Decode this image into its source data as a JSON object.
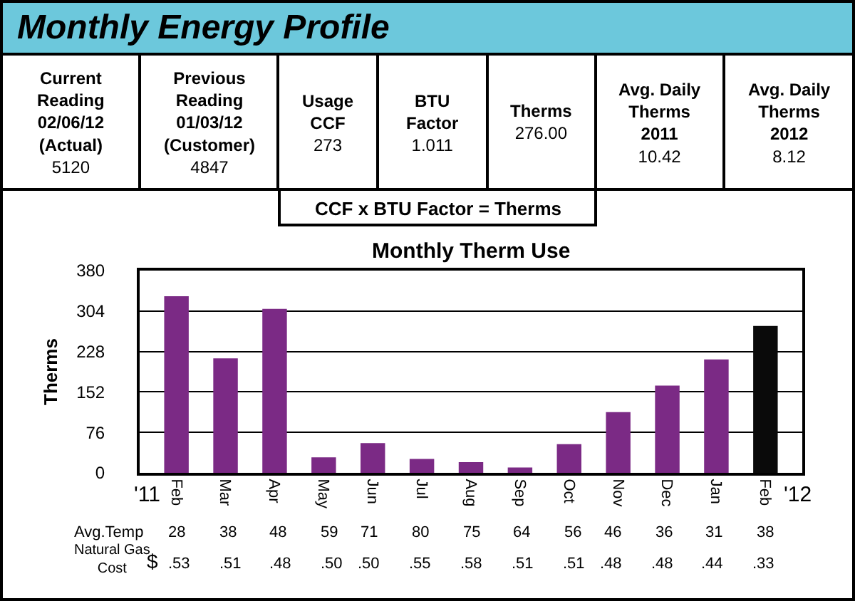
{
  "chart_data": [
    {
      "type": "other",
      "title": "Monthly Energy Profile",
      "annotations": [
        "Current\nReading\n02/06/12\n(Actual)\n5120",
        "Previous\nReading\n01/03/12\n(Customer)\n4847",
        "Usage\nCCF\n273",
        "BTU\nFactor\n1.011",
        "Therms\n276.00",
        "Avg. Daily\nTherms\n2011\n10.42",
        "Avg. Daily\nTherms\n2012\n8.12",
        "CCF x BTU Factor = Therms"
      ]
    },
    {
      "type": "bar",
      "title": "Monthly Therm Use",
      "ylabel": "Therms",
      "categories": [
        "Feb",
        "Mar",
        "Apr",
        "May",
        "Jun",
        "Jul",
        "Aug",
        "Sep",
        "Oct",
        "Nov",
        "Dec",
        "Jan",
        "Feb"
      ],
      "values": [
        332,
        215,
        308,
        29,
        56,
        26,
        20,
        10,
        54,
        114,
        164,
        213,
        276
      ],
      "colors": [
        "#7b2a85",
        "#7b2a85",
        "#7b2a85",
        "#7b2a85",
        "#7b2a85",
        "#7b2a85",
        "#7b2a85",
        "#7b2a85",
        "#7b2a85",
        "#7b2a85",
        "#7b2a85",
        "#7b2a85",
        "#0a0a0a"
      ],
      "ylim": [
        0,
        380
      ],
      "yticks": [
        0,
        76,
        152,
        228,
        304,
        380
      ],
      "grid": "y",
      "annotations": [
        "'11",
        "'12",
        "Avg.Temp",
        "28",
        "38",
        "48",
        "59",
        "71",
        "80",
        "75",
        "64",
        "56",
        "46",
        "36",
        "31",
        "38",
        "Natural Gas\nCost",
        "$",
        ".53",
        ".51",
        ".48",
        ".50",
        ".50",
        ".55",
        ".58",
        ".51",
        ".51",
        ".48",
        ".48",
        ".44",
        ".33"
      ]
    }
  ]
}
